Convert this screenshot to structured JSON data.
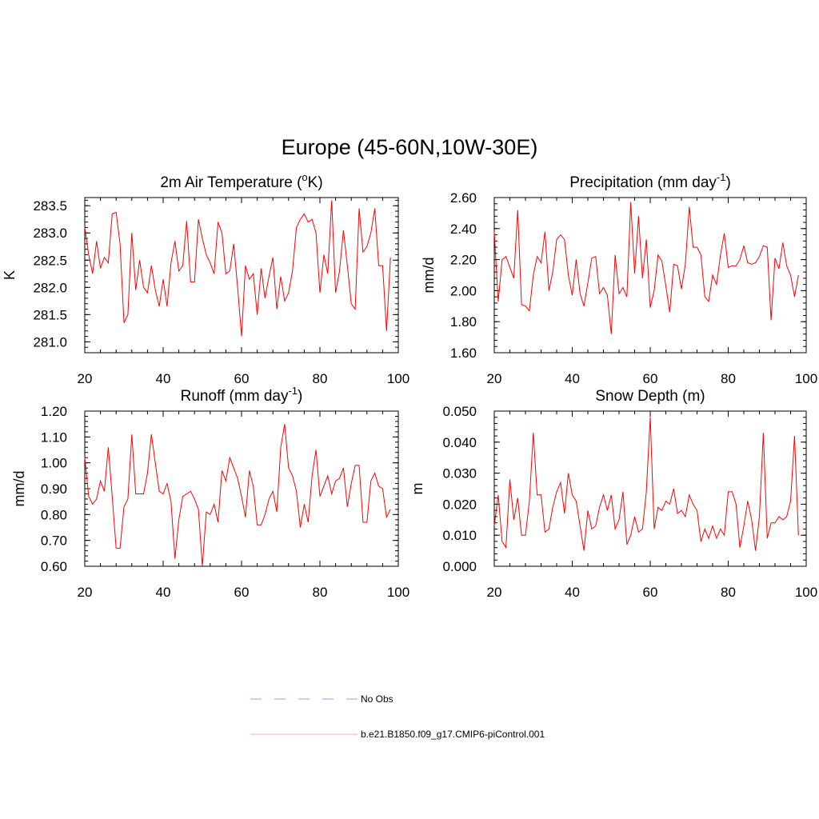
{
  "figure": {
    "title": "Europe (45-60N,10W-30E)",
    "line_color": "#ff0000",
    "obs_color": "#9999ff"
  },
  "legend": {
    "entries": [
      {
        "label": "No Obs",
        "style": "dashed",
        "color": "#9999ff"
      },
      {
        "label": "b.e21.B1850.f09_g17.CMIP6-piControl.001",
        "style": "solid",
        "color": "#ff0000"
      }
    ]
  },
  "chart_data": [
    {
      "type": "line",
      "title": "2m Air Temperature (°K)",
      "title_parts": {
        "before": "2m Air Temperature (",
        "sup": "o",
        "after": "K)"
      },
      "xlabel": "",
      "ylabel": "K",
      "xlim": [
        20,
        100
      ],
      "ylim": [
        280.8,
        283.65
      ],
      "x_ticks": [
        20,
        40,
        60,
        80,
        100
      ],
      "x_tick_labels": [
        "20",
        "40",
        "60",
        "80",
        "100"
      ],
      "y_ticks": [
        281.0,
        281.5,
        282.0,
        282.5,
        283.0,
        283.5
      ],
      "y_tick_labels": [
        "281.0",
        "281.5",
        "282.0",
        "282.5",
        "283.0",
        "283.5"
      ],
      "y_minor_step": 0.1,
      "series": [
        {
          "name": "b.e21.B1850.f09_g17.CMIP6-piControl.001",
          "x_start": 20,
          "x_step": 1,
          "values": [
            283.1,
            282.6,
            282.25,
            282.85,
            282.35,
            282.55,
            282.45,
            283.35,
            283.38,
            282.8,
            281.35,
            281.5,
            283.0,
            281.95,
            282.5,
            282.0,
            281.9,
            282.4,
            281.95,
            281.65,
            282.15,
            281.65,
            282.45,
            282.85,
            282.3,
            282.4,
            283.22,
            282.1,
            282.1,
            283.25,
            282.9,
            282.6,
            282.45,
            282.25,
            283.2,
            283.0,
            282.25,
            282.3,
            282.8,
            282.0,
            281.1,
            282.4,
            282.15,
            282.25,
            281.5,
            282.35,
            281.8,
            282.2,
            282.55,
            281.6,
            282.2,
            281.75,
            281.9,
            282.3,
            283.1,
            283.25,
            283.35,
            283.2,
            283.25,
            283.0,
            281.9,
            282.6,
            282.25,
            283.6,
            281.9,
            282.3,
            283.05,
            282.4,
            281.7,
            281.6,
            283.45,
            282.65,
            282.75,
            283.0,
            283.45,
            282.4,
            282.4,
            281.2,
            282.55
          ]
        }
      ]
    },
    {
      "type": "line",
      "title": "Precipitation (mm day-1)",
      "title_parts": {
        "before": "Precipitation (mm day",
        "sup": "-1",
        "after": ")"
      },
      "xlabel": "",
      "ylabel": "mm/d",
      "xlim": [
        20,
        100
      ],
      "ylim": [
        1.6,
        2.6
      ],
      "x_ticks": [
        20,
        40,
        60,
        80,
        100
      ],
      "x_tick_labels": [
        "20",
        "40",
        "60",
        "80",
        "100"
      ],
      "y_ticks": [
        1.6,
        1.8,
        2.0,
        2.2,
        2.4,
        2.6
      ],
      "y_tick_labels": [
        "1.60",
        "1.80",
        "2.00",
        "2.20",
        "2.40",
        "2.60"
      ],
      "y_minor_step": 0.04,
      "series": [
        {
          "name": "b.e21.B1850.f09_g17.CMIP6-piControl.001",
          "x_start": 20,
          "x_step": 1,
          "values": [
            2.38,
            1.93,
            2.2,
            2.22,
            2.15,
            2.08,
            2.52,
            1.91,
            1.9,
            1.87,
            2.1,
            2.22,
            2.18,
            2.38,
            2.0,
            2.12,
            2.33,
            2.36,
            2.33,
            2.1,
            1.97,
            2.2,
            1.98,
            1.9,
            2.05,
            2.21,
            2.22,
            1.98,
            2.02,
            1.97,
            1.72,
            2.23,
            1.98,
            2.02,
            1.96,
            2.57,
            2.11,
            2.48,
            2.08,
            2.33,
            1.89,
            2.0,
            2.23,
            2.19,
            2.03,
            1.86,
            2.17,
            2.16,
            2.01,
            2.17,
            2.54,
            2.28,
            2.28,
            2.23,
            1.96,
            1.93,
            2.1,
            2.04,
            2.23,
            2.37,
            2.15,
            2.16,
            2.16,
            2.2,
            2.29,
            2.18,
            2.17,
            2.18,
            2.22,
            2.29,
            2.28,
            1.81,
            2.21,
            2.14,
            2.31,
            2.16,
            2.1,
            1.96,
            2.1
          ]
        }
      ]
    },
    {
      "type": "line",
      "title": "Runoff (mm day-1)",
      "title_parts": {
        "before": "Runoff (mm day",
        "sup": "-1",
        "after": ")"
      },
      "xlabel": "",
      "ylabel": "mm/d",
      "xlim": [
        20,
        100
      ],
      "ylim": [
        0.6,
        1.2
      ],
      "x_ticks": [
        20,
        40,
        60,
        80,
        100
      ],
      "x_tick_labels": [
        "20",
        "40",
        "60",
        "80",
        "100"
      ],
      "y_ticks": [
        0.6,
        0.7,
        0.8,
        0.9,
        1.0,
        1.1,
        1.2
      ],
      "y_tick_labels": [
        "0.60",
        "0.70",
        "0.80",
        "0.90",
        "1.00",
        "1.10",
        "1.20"
      ],
      "y_minor_step": 0.02,
      "series": [
        {
          "name": "b.e21.B1850.f09_g17.CMIP6-piControl.001",
          "x_start": 20,
          "x_step": 1,
          "values": [
            1.02,
            0.87,
            0.84,
            0.86,
            0.93,
            0.89,
            1.06,
            0.87,
            0.67,
            0.67,
            0.83,
            0.86,
            1.11,
            0.88,
            0.88,
            0.88,
            0.96,
            1.11,
            1.0,
            0.89,
            0.88,
            0.92,
            0.85,
            0.63,
            0.78,
            0.87,
            0.88,
            0.89,
            0.86,
            0.82,
            0.6,
            0.81,
            0.8,
            0.84,
            0.77,
            0.97,
            0.93,
            1.02,
            0.98,
            0.94,
            0.87,
            0.79,
            0.97,
            0.91,
            0.76,
            0.76,
            0.8,
            0.86,
            0.89,
            0.81,
            1.06,
            1.15,
            0.98,
            0.95,
            0.89,
            0.75,
            0.84,
            0.77,
            0.95,
            1.05,
            0.87,
            0.91,
            0.95,
            0.88,
            0.93,
            0.94,
            0.98,
            0.83,
            0.92,
            0.99,
            0.99,
            0.77,
            0.77,
            0.93,
            0.96,
            0.91,
            0.9,
            0.79,
            0.82
          ]
        }
      ]
    },
    {
      "type": "line",
      "title": "Snow Depth (m)",
      "title_parts": {
        "before": "Snow Depth (m)",
        "sup": "",
        "after": ""
      },
      "xlabel": "",
      "ylabel": "m",
      "xlim": [
        20,
        100
      ],
      "ylim": [
        0.0,
        0.05
      ],
      "x_ticks": [
        20,
        40,
        60,
        80,
        100
      ],
      "x_tick_labels": [
        "20",
        "40",
        "60",
        "80",
        "100"
      ],
      "y_ticks": [
        0.0,
        0.01,
        0.02,
        0.03,
        0.04,
        0.05
      ],
      "y_tick_labels": [
        "0.000",
        "0.010",
        "0.020",
        "0.030",
        "0.040",
        "0.050"
      ],
      "y_minor_step": 0.002,
      "series": [
        {
          "name": "b.e21.B1850.f09_g17.CMIP6-piControl.001",
          "x_start": 20,
          "x_step": 1,
          "values": [
            0.013,
            0.023,
            0.008,
            0.006,
            0.028,
            0.015,
            0.022,
            0.01,
            0.01,
            0.021,
            0.043,
            0.023,
            0.023,
            0.011,
            0.012,
            0.019,
            0.024,
            0.027,
            0.017,
            0.03,
            0.023,
            0.021,
            0.013,
            0.005,
            0.018,
            0.012,
            0.013,
            0.019,
            0.023,
            0.018,
            0.023,
            0.012,
            0.015,
            0.024,
            0.007,
            0.01,
            0.016,
            0.011,
            0.012,
            0.024,
            0.048,
            0.012,
            0.019,
            0.018,
            0.021,
            0.02,
            0.025,
            0.017,
            0.018,
            0.016,
            0.023,
            0.02,
            0.018,
            0.008,
            0.012,
            0.009,
            0.013,
            0.009,
            0.012,
            0.01,
            0.024,
            0.024,
            0.02,
            0.006,
            0.013,
            0.021,
            0.015,
            0.005,
            0.016,
            0.043,
            0.009,
            0.014,
            0.014,
            0.016,
            0.015,
            0.016,
            0.021,
            0.042,
            0.01
          ]
        }
      ]
    }
  ]
}
